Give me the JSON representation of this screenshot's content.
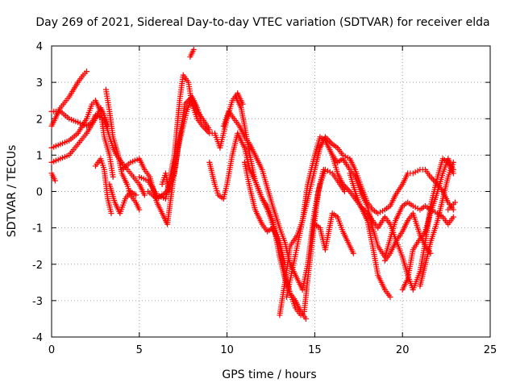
{
  "chart_data": {
    "type": "scatter",
    "title": "Day 269 of 2021, Sidereal Day-to-day VTEC variation (SDTVAR) for receiver elda",
    "xlabel": "GPS time / hours",
    "ylabel": "SDTVAR / TECUs",
    "xlim": [
      0,
      25
    ],
    "ylim": [
      -4,
      4
    ],
    "xticks": [
      "0",
      "5",
      "10",
      "15",
      "20",
      "25"
    ],
    "yticks": [
      "-4",
      "-3",
      "-2",
      "-1",
      "0",
      "1",
      "2",
      "3",
      "4"
    ],
    "grid": true,
    "legend": false,
    "marker": "plus",
    "color": "#ff0000",
    "series": [
      {
        "x": [
          0.0,
          0.5,
          1.0,
          1.5,
          1.8,
          2.0
        ],
        "y": [
          1.8,
          2.3,
          2.6,
          3.0,
          3.2,
          3.3
        ]
      },
      {
        "x": [
          0.0,
          0.5,
          1.0,
          1.5,
          2.0,
          2.3,
          2.5,
          3.0,
          3.3,
          3.5,
          3.7,
          4.0,
          4.5,
          5.0,
          5.3
        ],
        "y": [
          2.2,
          2.2,
          2.0,
          1.9,
          1.8,
          1.9,
          2.1,
          2.0,
          1.5,
          1.2,
          1.0,
          0.8,
          0.5,
          0.2,
          -0.1
        ]
      },
      {
        "x": [
          0.0,
          0.5,
          1.0,
          1.5,
          2.0,
          2.3,
          2.5,
          2.8,
          3.0,
          3.3,
          3.5
        ],
        "y": [
          1.2,
          1.3,
          1.4,
          1.6,
          2.0,
          2.4,
          2.5,
          2.2,
          1.5,
          1.0,
          0.4
        ]
      },
      {
        "x": [
          0.0,
          0.5,
          1.0,
          1.5,
          2.0,
          2.5,
          2.8,
          3.0,
          3.2
        ],
        "y": [
          0.8,
          0.9,
          1.0,
          1.3,
          1.6,
          2.0,
          2.3,
          2.1,
          1.8
        ]
      },
      {
        "x": [
          0.0,
          0.2
        ],
        "y": [
          0.5,
          0.3
        ]
      },
      {
        "x": [
          2.5,
          2.8,
          3.0,
          3.2,
          3.4
        ],
        "y": [
          0.7,
          0.9,
          0.6,
          -0.2,
          -0.6
        ]
      },
      {
        "x": [
          3.1,
          3.3,
          3.5,
          3.8,
          4.0,
          4.3,
          4.5,
          4.8,
          5.0
        ],
        "y": [
          2.8,
          2.2,
          1.5,
          1.0,
          0.5,
          0.2,
          -0.1,
          -0.3,
          -0.5
        ]
      },
      {
        "x": [
          3.3,
          3.6,
          3.9,
          4.2,
          4.5,
          4.8
        ],
        "y": [
          0.2,
          -0.3,
          -0.6,
          -0.2,
          0.0,
          -0.1
        ]
      },
      {
        "x": [
          4.0,
          4.5,
          5.0,
          5.3,
          5.6,
          6.0,
          6.3,
          6.6,
          6.9,
          7.2,
          7.5,
          7.7,
          8.0,
          8.3,
          8.5
        ],
        "y": [
          0.6,
          0.8,
          0.9,
          0.6,
          0.4,
          -0.3,
          -0.6,
          -0.9,
          0.2,
          1.2,
          1.8,
          2.2,
          2.6,
          2.3,
          2.0
        ]
      },
      {
        "x": [
          5.0,
          5.5,
          6.0,
          6.5,
          7.0,
          7.3,
          7.5,
          7.8,
          8.0,
          8.3,
          8.6,
          9.0,
          9.3,
          9.6,
          10.0,
          10.3,
          10.6,
          10.9
        ],
        "y": [
          0.4,
          0.3,
          -0.1,
          -0.2,
          1.0,
          2.5,
          3.2,
          3.0,
          2.4,
          2.0,
          1.8,
          1.6,
          1.6,
          1.2,
          2.0,
          2.5,
          2.7,
          2.4
        ]
      },
      {
        "x": [
          5.5,
          6.0,
          6.3,
          6.6,
          7.0,
          7.3,
          7.6,
          8.0,
          8.3,
          8.6,
          9.0
        ],
        "y": [
          0.0,
          -0.2,
          -0.1,
          0.0,
          0.5,
          1.5,
          2.4,
          2.6,
          2.2,
          2.0,
          1.7
        ]
      },
      {
        "x": [
          6.3,
          6.5,
          6.7
        ],
        "y": [
          0.2,
          0.5,
          0.0
        ]
      },
      {
        "x": [
          7.9,
          8.1
        ],
        "y": [
          3.7,
          3.9
        ]
      },
      {
        "x": [
          9.0,
          9.3,
          9.5,
          9.8,
          10.0,
          10.3,
          10.6,
          11.0,
          11.3,
          11.6,
          12.0,
          12.3,
          12.6,
          13.0,
          13.3,
          13.6,
          13.9,
          14.2,
          14.4,
          14.6,
          14.9,
          15.2,
          15.5
        ],
        "y": [
          0.8,
          0.2,
          -0.1,
          -0.2,
          0.2,
          1.0,
          1.6,
          1.2,
          0.6,
          0.3,
          -0.2,
          -0.5,
          -0.9,
          -1.5,
          -2.3,
          -2.8,
          -3.2,
          -3.4,
          -3.3,
          -2.4,
          -1.2,
          0.0,
          0.6
        ]
      },
      {
        "x": [
          9.8,
          10.1,
          10.4,
          10.7,
          11.0,
          11.3,
          11.6,
          12.0,
          12.3,
          12.6,
          13.0,
          13.3,
          13.6,
          14.0,
          14.3,
          14.6,
          15.0,
          15.3,
          15.6,
          16.0,
          16.3,
          16.7
        ],
        "y": [
          1.8,
          2.2,
          2.0,
          1.8,
          1.5,
          1.3,
          1.0,
          0.6,
          0.1,
          -0.4,
          -1.0,
          -1.4,
          -2.0,
          -2.4,
          -2.7,
          -2.0,
          -0.5,
          0.2,
          0.6,
          0.5,
          0.3,
          0.0
        ]
      },
      {
        "x": [
          10.5,
          10.8,
          11.0,
          11.3,
          11.6,
          12.0,
          12.3,
          12.6,
          13.0,
          13.3,
          13.6,
          13.9,
          14.2,
          14.5
        ],
        "y": [
          2.6,
          2.3,
          1.8,
          1.0,
          0.3,
          -0.2,
          -0.4,
          -0.8,
          -1.8,
          -2.4,
          -2.8,
          -3.0,
          -3.3,
          -3.5
        ]
      },
      {
        "x": [
          11.0,
          11.3,
          11.6,
          12.0,
          12.3,
          12.6,
          13.0,
          13.3
        ],
        "y": [
          0.8,
          0.1,
          -0.5,
          -0.9,
          -1.1,
          -1.0,
          -1.4,
          -2.0
        ]
      },
      {
        "x": [
          13.0,
          13.3,
          13.6,
          14.0,
          14.3,
          14.6,
          15.0,
          15.3,
          15.6,
          16.0,
          16.3,
          16.6,
          17.0,
          17.3,
          17.6,
          18.0,
          18.3,
          18.6,
          19.0,
          19.3,
          19.6,
          20.0,
          20.3,
          20.6,
          21.0,
          21.3,
          21.6,
          22.0,
          22.3,
          22.6,
          22.9
        ],
        "y": [
          -3.4,
          -2.5,
          -1.5,
          -1.2,
          -0.8,
          -0.2,
          0.6,
          1.2,
          1.5,
          1.3,
          1.2,
          1.0,
          0.9,
          0.6,
          0.2,
          -0.3,
          -0.5,
          -0.6,
          -0.5,
          -0.4,
          -0.1,
          0.2,
          0.5,
          0.5,
          0.6,
          0.6,
          0.4,
          0.2,
          0.0,
          -0.3,
          -0.5
        ]
      },
      {
        "x": [
          13.4,
          13.7,
          14.0,
          14.3,
          14.6,
          15.0,
          15.3,
          15.6,
          16.0,
          16.3,
          16.6,
          17.0,
          17.3,
          17.6,
          18.0,
          18.3,
          18.6,
          19.0,
          19.3
        ],
        "y": [
          -2.9,
          -2.2,
          -1.5,
          -0.8,
          0.2,
          1.0,
          1.5,
          1.4,
          1.0,
          0.5,
          0.2,
          0.0,
          -0.2,
          -0.4,
          -0.8,
          -1.5,
          -2.3,
          -2.7,
          -2.9
        ]
      },
      {
        "x": [
          15.0,
          15.3,
          15.6,
          16.0,
          16.3,
          16.6,
          16.9,
          17.2
        ],
        "y": [
          -0.9,
          -1.0,
          -1.6,
          -0.6,
          -0.7,
          -1.1,
          -1.4,
          -1.7
        ]
      },
      {
        "x": [
          16.0,
          16.3,
          16.6,
          17.0,
          17.3,
          17.6,
          18.0,
          18.3,
          18.6,
          19.0,
          19.3,
          19.6,
          20.0,
          20.3,
          20.6,
          21.0,
          21.3,
          21.6,
          22.0,
          22.3,
          22.6,
          22.9
        ],
        "y": [
          1.0,
          0.8,
          0.9,
          0.6,
          0.4,
          0.0,
          -0.4,
          -1.0,
          -1.5,
          -1.8,
          -1.3,
          -0.8,
          -0.4,
          -0.3,
          -0.4,
          -0.5,
          -0.4,
          -0.5,
          -0.6,
          -0.7,
          -0.9,
          -0.7
        ]
      },
      {
        "x": [
          17.0,
          17.3,
          17.6,
          18.0,
          18.3,
          18.6,
          19.0,
          19.3,
          19.6,
          20.0,
          20.3,
          20.6,
          21.0,
          21.3,
          21.6,
          22.0,
          22.3,
          22.6,
          22.9
        ],
        "y": [
          0.5,
          0.0,
          -0.4,
          -0.6,
          -0.8,
          -1.0,
          -0.7,
          -0.9,
          -1.3,
          -1.8,
          -2.3,
          -2.7,
          -2.2,
          -1.4,
          -0.4,
          0.4,
          0.9,
          0.8,
          0.5
        ]
      },
      {
        "x": [
          19.0,
          19.3,
          19.6,
          20.0,
          20.3,
          20.6,
          21.0,
          21.3,
          21.6
        ],
        "y": [
          -1.9,
          -1.7,
          -1.4,
          -1.1,
          -0.8,
          -0.6,
          -1.2,
          -1.5,
          -1.7
        ]
      },
      {
        "x": [
          20.0,
          20.3,
          20.6,
          21.0,
          21.3,
          21.6,
          22.0,
          22.3,
          22.6,
          22.9
        ],
        "y": [
          -2.7,
          -2.4,
          -1.6,
          -1.3,
          -1.1,
          -0.6,
          0.0,
          0.5,
          0.9,
          0.6
        ]
      },
      {
        "x": [
          21.0,
          21.3,
          21.6,
          22.0,
          22.3,
          22.6,
          22.9
        ],
        "y": [
          -2.6,
          -2.0,
          -1.4,
          -0.8,
          -0.2,
          0.4,
          0.8
        ]
      },
      {
        "x": [
          22.6,
          22.8,
          23.0
        ],
        "y": [
          -0.5,
          -0.4,
          -0.3
        ]
      }
    ]
  }
}
